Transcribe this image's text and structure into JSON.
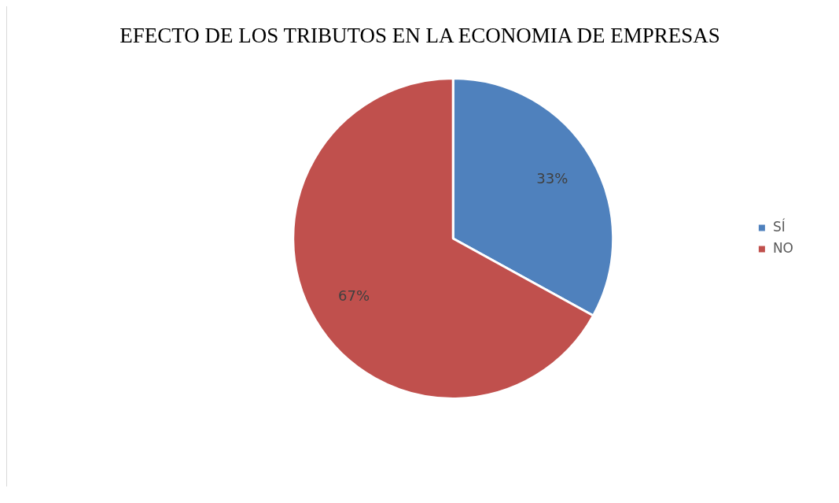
{
  "chart_data": {
    "type": "pie",
    "title": "EFECTO DE LOS TRIBUTOS EN LA ECONOMIA DE EMPRESAS",
    "categories": [
      "SÍ",
      "NO"
    ],
    "values": [
      33,
      67
    ],
    "colors": [
      "#4f81bd",
      "#c0504d"
    ],
    "value_labels": [
      "33%",
      "67%"
    ],
    "legend": "right"
  }
}
